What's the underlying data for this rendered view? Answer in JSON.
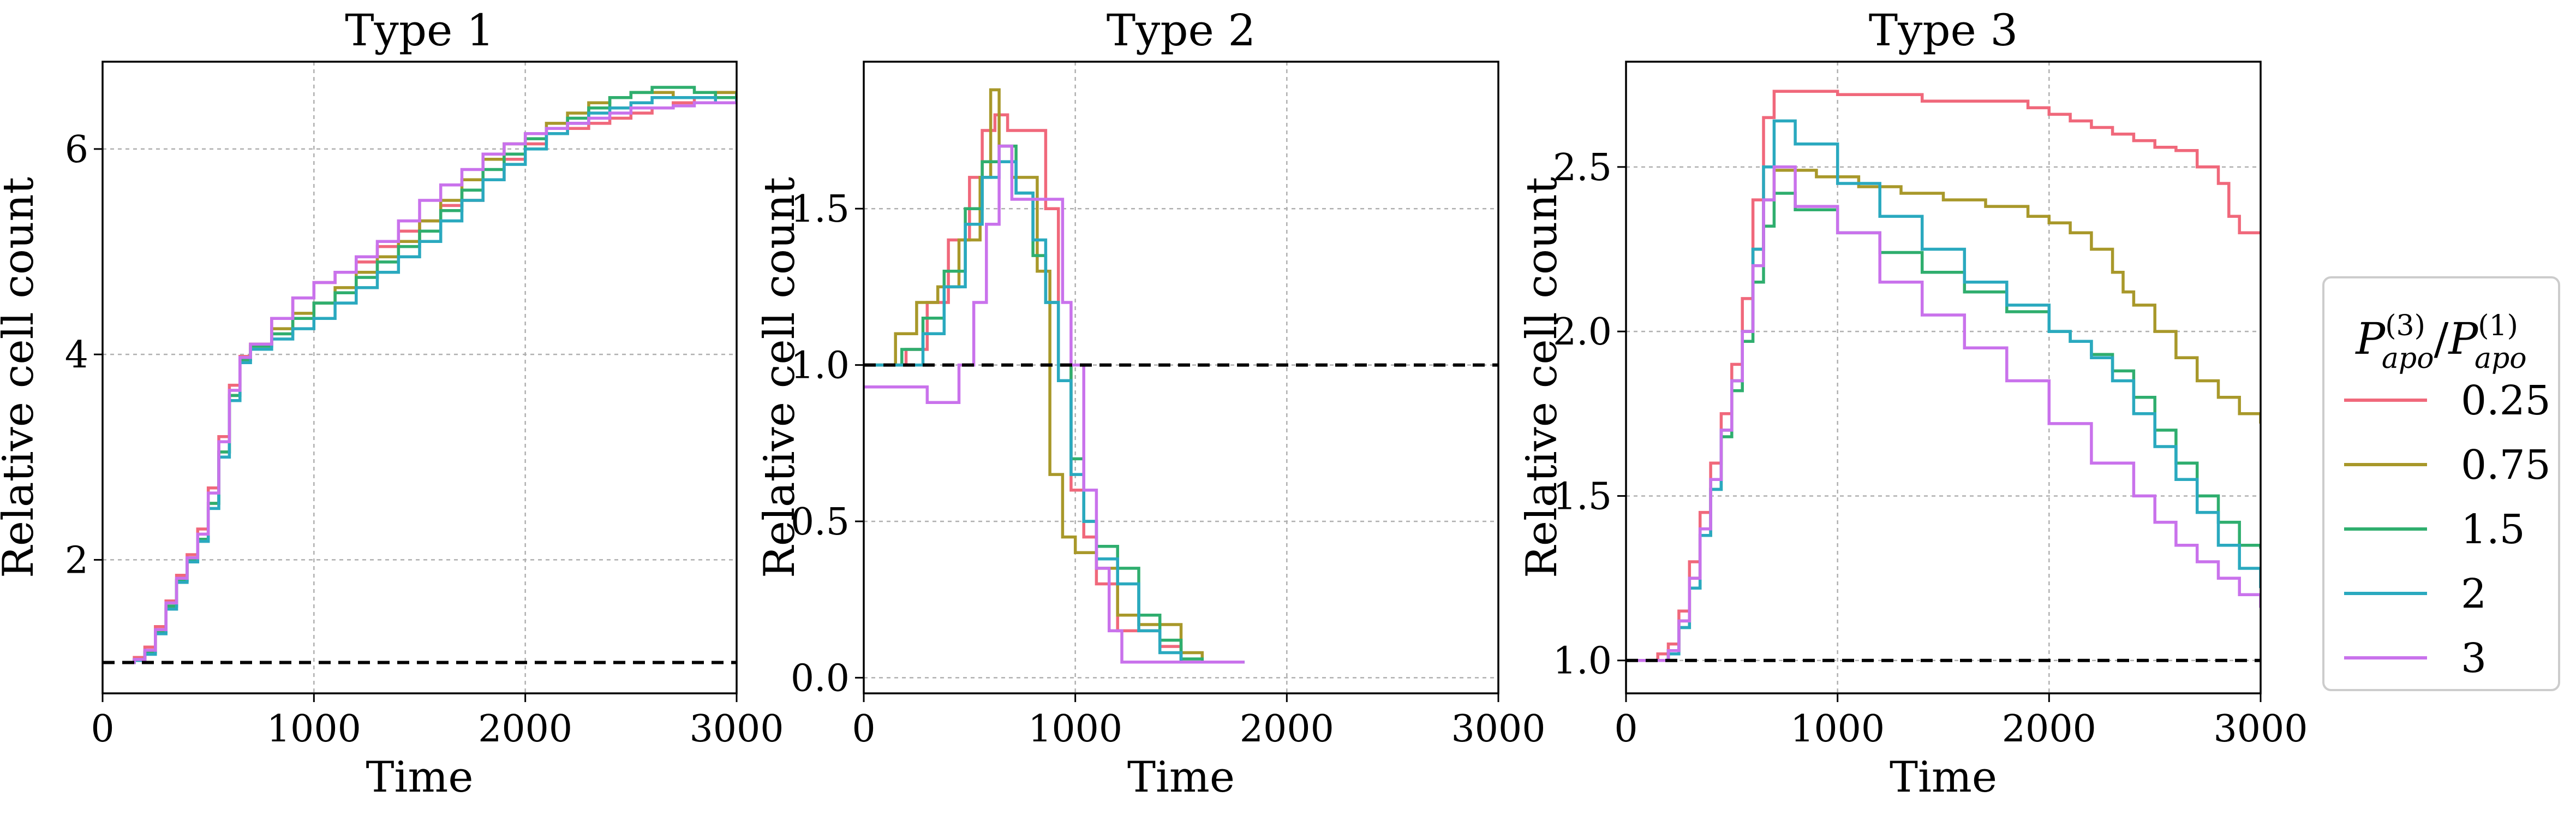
{
  "legend": {
    "title": "P(3)apo/P(1)apo",
    "title_parts": {
      "p": "P",
      "sup": "(3)",
      "sub": "apo",
      "slash": "/"
    },
    "entries": [
      {
        "label": "0.25",
        "color": "#f0687b"
      },
      {
        "label": "0.75",
        "color": "#a8982a"
      },
      {
        "label": "1.5",
        "color": "#2fae6e"
      },
      {
        "label": "2",
        "color": "#2aa9bf"
      },
      {
        "label": "3",
        "color": "#c972ec"
      }
    ]
  },
  "chart_data": [
    {
      "type": "line",
      "step": true,
      "title": "Type 1",
      "xlabel": "Time",
      "ylabel": "Relative cell count",
      "xlim": [
        0,
        3000
      ],
      "ylim": [
        0.7,
        6.85
      ],
      "xticks": [
        0,
        1000,
        2000,
        3000
      ],
      "yticks": [
        2,
        4,
        6
      ],
      "reference_line": 1.0,
      "grid": true,
      "series": [
        {
          "name": "0.25",
          "x": [
            100,
            150,
            200,
            250,
            300,
            350,
            400,
            450,
            500,
            550,
            600,
            650,
            700,
            800,
            900,
            1000,
            1100,
            1200,
            1300,
            1400,
            1500,
            1600,
            1700,
            1800,
            1900,
            2000,
            2100,
            2200,
            2300,
            2400,
            2500,
            2600,
            2700,
            2800,
            2900,
            3000
          ],
          "y": [
            1.0,
            1.05,
            1.15,
            1.35,
            1.6,
            1.85,
            2.05,
            2.3,
            2.7,
            3.2,
            3.7,
            3.98,
            4.1,
            4.35,
            4.55,
            4.7,
            4.8,
            4.9,
            5.05,
            5.2,
            5.3,
            5.45,
            5.5,
            5.7,
            5.9,
            6.05,
            6.15,
            6.2,
            6.25,
            6.3,
            6.35,
            6.4,
            6.45,
            6.5,
            6.55,
            6.55
          ]
        },
        {
          "name": "0.75",
          "x": [
            100,
            150,
            200,
            250,
            300,
            350,
            400,
            450,
            500,
            550,
            600,
            650,
            700,
            800,
            900,
            1000,
            1100,
            1200,
            1300,
            1400,
            1500,
            1600,
            1700,
            1800,
            1900,
            2000,
            2100,
            2200,
            2300,
            2400,
            2500,
            2600,
            2700,
            2800,
            2900,
            3000
          ],
          "y": [
            1.0,
            1.03,
            1.1,
            1.3,
            1.55,
            1.8,
            2.0,
            2.2,
            2.55,
            3.05,
            3.6,
            3.95,
            4.1,
            4.25,
            4.4,
            4.5,
            4.65,
            4.8,
            4.95,
            5.1,
            5.3,
            5.5,
            5.7,
            5.9,
            6.05,
            6.15,
            6.25,
            6.35,
            6.45,
            6.5,
            6.55,
            6.55,
            6.5,
            6.5,
            6.55,
            6.55
          ]
        },
        {
          "name": "1.5",
          "x": [
            100,
            150,
            200,
            250,
            300,
            350,
            400,
            450,
            500,
            550,
            600,
            650,
            700,
            800,
            900,
            1000,
            1100,
            1200,
            1300,
            1400,
            1500,
            1600,
            1700,
            1800,
            1900,
            2000,
            2100,
            2200,
            2300,
            2400,
            2500,
            2600,
            2700,
            2800,
            2900,
            3000
          ],
          "y": [
            1.0,
            1.02,
            1.1,
            1.3,
            1.55,
            1.8,
            2.0,
            2.2,
            2.55,
            3.05,
            3.6,
            3.95,
            4.08,
            4.2,
            4.35,
            4.5,
            4.6,
            4.75,
            4.9,
            5.05,
            5.2,
            5.4,
            5.6,
            5.8,
            5.95,
            6.1,
            6.2,
            6.3,
            6.4,
            6.5,
            6.55,
            6.6,
            6.6,
            6.55,
            6.5,
            6.55
          ]
        },
        {
          "name": "2",
          "x": [
            100,
            150,
            200,
            250,
            300,
            350,
            400,
            450,
            500,
            550,
            600,
            650,
            700,
            800,
            900,
            1000,
            1100,
            1200,
            1300,
            1400,
            1500,
            1600,
            1700,
            1800,
            1900,
            2000,
            2100,
            2200,
            2300,
            2400,
            2500,
            2600,
            2700,
            2800,
            2900,
            3000
          ],
          "y": [
            1.0,
            1.02,
            1.08,
            1.28,
            1.52,
            1.78,
            1.98,
            2.18,
            2.5,
            3.0,
            3.55,
            3.92,
            4.05,
            4.15,
            4.25,
            4.35,
            4.5,
            4.65,
            4.8,
            4.95,
            5.1,
            5.3,
            5.5,
            5.7,
            5.85,
            6.0,
            6.15,
            6.25,
            6.35,
            6.4,
            6.45,
            6.5,
            6.5,
            6.5,
            6.45,
            6.5
          ]
        },
        {
          "name": "3",
          "x": [
            100,
            150,
            200,
            250,
            300,
            350,
            400,
            450,
            500,
            550,
            600,
            650,
            700,
            800,
            900,
            1000,
            1100,
            1200,
            1300,
            1400,
            1500,
            1600,
            1700,
            1800,
            1900,
            2000,
            2100,
            2200,
            2300,
            2400,
            2500,
            2600,
            2700,
            2800,
            2900,
            3000
          ],
          "y": [
            1.0,
            1.03,
            1.12,
            1.32,
            1.58,
            1.82,
            2.02,
            2.25,
            2.65,
            3.15,
            3.65,
            3.97,
            4.1,
            4.35,
            4.55,
            4.7,
            4.8,
            4.95,
            5.1,
            5.3,
            5.5,
            5.65,
            5.8,
            5.95,
            6.05,
            6.15,
            6.2,
            6.25,
            6.3,
            6.35,
            6.4,
            6.4,
            6.42,
            6.45,
            6.45,
            6.45
          ]
        }
      ]
    },
    {
      "type": "line",
      "step": true,
      "title": "Type 2",
      "xlabel": "Time",
      "ylabel": "Relative cell count",
      "xlim": [
        0,
        3000
      ],
      "ylim": [
        -0.05,
        1.97
      ],
      "xticks": [
        0,
        1000,
        2000,
        3000
      ],
      "yticks": [
        0.0,
        0.5,
        1.0,
        1.5
      ],
      "ytick_format": 1,
      "reference_line": 1.0,
      "grid": true,
      "series": [
        {
          "name": "0.25",
          "x": [
            0,
            200,
            300,
            400,
            500,
            560,
            620,
            680,
            860,
            920,
            980,
            1040,
            1100,
            1200,
            1300,
            1400,
            1500,
            1600,
            1800
          ],
          "y": [
            1.0,
            1.05,
            1.2,
            1.4,
            1.6,
            1.75,
            1.8,
            1.75,
            1.5,
            1.0,
            0.6,
            0.45,
            0.3,
            0.15,
            0.15,
            0.1,
            0.05,
            0.05,
            0.05
          ]
        },
        {
          "name": "0.75",
          "x": [
            0,
            150,
            250,
            350,
            450,
            550,
            600,
            640,
            700,
            820,
            880,
            940,
            1000,
            1100,
            1200,
            1300,
            1400,
            1500,
            1600,
            1800
          ],
          "y": [
            1.0,
            1.1,
            1.2,
            1.25,
            1.4,
            1.6,
            1.88,
            1.7,
            1.6,
            1.3,
            0.65,
            0.45,
            0.4,
            0.35,
            0.2,
            0.17,
            0.17,
            0.08,
            0.05,
            0.05
          ]
        },
        {
          "name": "1.5",
          "x": [
            0,
            180,
            280,
            380,
            480,
            560,
            640,
            720,
            800,
            860,
            920,
            980,
            1040,
            1100,
            1200,
            1300,
            1400,
            1500,
            1600,
            1800
          ],
          "y": [
            1.0,
            1.05,
            1.15,
            1.3,
            1.5,
            1.65,
            1.7,
            1.55,
            1.35,
            1.2,
            1.0,
            0.7,
            0.5,
            0.42,
            0.35,
            0.2,
            0.12,
            0.06,
            0.05,
            0.05
          ]
        },
        {
          "name": "2",
          "x": [
            0,
            180,
            280,
            380,
            480,
            560,
            640,
            720,
            800,
            860,
            920,
            980,
            1040,
            1100,
            1200,
            1300,
            1400,
            1500,
            1600,
            1800
          ],
          "y": [
            1.0,
            1.0,
            1.1,
            1.25,
            1.45,
            1.6,
            1.65,
            1.55,
            1.4,
            1.2,
            0.95,
            0.65,
            0.5,
            0.38,
            0.3,
            0.15,
            0.08,
            0.05,
            0.05,
            0.05
          ]
        },
        {
          "name": "3",
          "x": [
            0,
            200,
            300,
            400,
            450,
            520,
            580,
            640,
            700,
            900,
            940,
            980,
            1040,
            1100,
            1160,
            1220,
            1300,
            1400,
            1500,
            1800
          ],
          "y": [
            0.93,
            0.93,
            0.88,
            0.88,
            1.0,
            1.2,
            1.45,
            1.7,
            1.53,
            1.53,
            1.2,
            1.0,
            0.6,
            0.35,
            0.15,
            0.05,
            0.05,
            0.05,
            0.05,
            0.05
          ]
        }
      ]
    },
    {
      "type": "line",
      "step": true,
      "title": "Type 3",
      "xlabel": "Time",
      "ylabel": "Relative cell count",
      "xlim": [
        0,
        3000
      ],
      "ylim": [
        0.9,
        2.82
      ],
      "xticks": [
        0,
        1000,
        2000,
        3000
      ],
      "yticks": [
        1.0,
        1.5,
        2.0,
        2.5
      ],
      "ytick_format": 1,
      "reference_line": 1.0,
      "grid": true,
      "series": [
        {
          "name": "0.25",
          "x": [
            0,
            150,
            200,
            250,
            300,
            350,
            400,
            450,
            500,
            550,
            600,
            650,
            700,
            1000,
            1400,
            1700,
            1900,
            2000,
            2100,
            2200,
            2300,
            2400,
            2500,
            2600,
            2700,
            2800,
            2850,
            2900,
            3000
          ],
          "y": [
            1.0,
            1.02,
            1.05,
            1.15,
            1.3,
            1.45,
            1.6,
            1.75,
            1.9,
            2.1,
            2.4,
            2.65,
            2.73,
            2.72,
            2.7,
            2.7,
            2.68,
            2.66,
            2.64,
            2.62,
            2.6,
            2.58,
            2.56,
            2.55,
            2.5,
            2.45,
            2.35,
            2.3,
            2.3
          ]
        },
        {
          "name": "0.75",
          "x": [
            0,
            150,
            200,
            250,
            300,
            350,
            400,
            450,
            500,
            550,
            600,
            650,
            700,
            900,
            1100,
            1300,
            1500,
            1700,
            1900,
            2000,
            2100,
            2200,
            2300,
            2350,
            2400,
            2500,
            2600,
            2700,
            2800,
            2900,
            3000
          ],
          "y": [
            1.0,
            1.0,
            1.03,
            1.12,
            1.25,
            1.4,
            1.55,
            1.7,
            1.85,
            2.0,
            2.25,
            2.4,
            2.49,
            2.47,
            2.44,
            2.42,
            2.4,
            2.38,
            2.35,
            2.33,
            2.3,
            2.25,
            2.18,
            2.12,
            2.08,
            2.0,
            1.92,
            1.85,
            1.8,
            1.75,
            1.72
          ]
        },
        {
          "name": "1.5",
          "x": [
            0,
            150,
            200,
            250,
            300,
            350,
            400,
            450,
            500,
            550,
            600,
            650,
            700,
            800,
            1000,
            1200,
            1400,
            1600,
            1800,
            2000,
            2100,
            2200,
            2300,
            2400,
            2500,
            2600,
            2700,
            2800,
            2900,
            3000
          ],
          "y": [
            1.0,
            1.0,
            1.03,
            1.1,
            1.22,
            1.38,
            1.52,
            1.68,
            1.82,
            1.97,
            2.15,
            2.32,
            2.42,
            2.37,
            2.3,
            2.24,
            2.18,
            2.12,
            2.06,
            2.0,
            1.97,
            1.93,
            1.88,
            1.8,
            1.7,
            1.6,
            1.5,
            1.42,
            1.35,
            1.34
          ]
        },
        {
          "name": "2",
          "x": [
            0,
            150,
            200,
            250,
            300,
            350,
            400,
            450,
            500,
            550,
            600,
            650,
            700,
            800,
            1000,
            1200,
            1400,
            1600,
            1800,
            2000,
            2100,
            2200,
            2300,
            2400,
            2500,
            2600,
            2700,
            2800,
            2900,
            3000
          ],
          "y": [
            1.0,
            1.0,
            1.02,
            1.1,
            1.22,
            1.38,
            1.52,
            1.7,
            1.85,
            2.0,
            2.25,
            2.5,
            2.64,
            2.57,
            2.45,
            2.35,
            2.25,
            2.15,
            2.08,
            2.0,
            1.97,
            1.92,
            1.85,
            1.75,
            1.65,
            1.55,
            1.45,
            1.35,
            1.28,
            1.22
          ]
        },
        {
          "name": "3",
          "x": [
            0,
            150,
            200,
            250,
            300,
            350,
            400,
            450,
            500,
            550,
            600,
            650,
            700,
            800,
            1000,
            1200,
            1400,
            1600,
            1800,
            2000,
            2200,
            2400,
            2500,
            2600,
            2700,
            2800,
            2900,
            3000
          ],
          "y": [
            1.0,
            1.0,
            1.03,
            1.12,
            1.25,
            1.4,
            1.55,
            1.7,
            1.85,
            2.0,
            2.2,
            2.4,
            2.5,
            2.38,
            2.3,
            2.15,
            2.05,
            1.95,
            1.85,
            1.72,
            1.6,
            1.5,
            1.42,
            1.35,
            1.3,
            1.25,
            1.2,
            1.16
          ]
        }
      ]
    }
  ]
}
